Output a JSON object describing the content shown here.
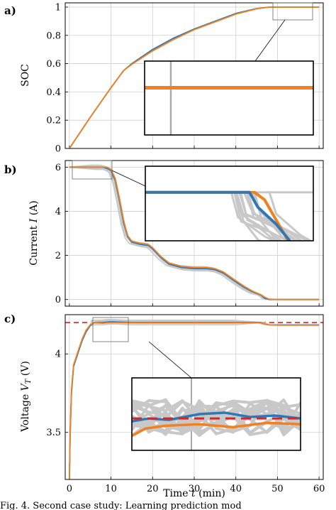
{
  "caption": "Fig. 4. Second case study: Learning prediction mod",
  "colors": {
    "blue": "#2f78b5",
    "orange": "#f08020",
    "gray": "#c8c8c8",
    "red": "#d62728",
    "grid": "#cfcfcf"
  },
  "chart_data": [
    {
      "type": "line",
      "panel_label": "a)",
      "ylabel": "SOC",
      "xlim": [
        -1,
        61
      ],
      "ylim": [
        0,
        1.03
      ],
      "xticks": [
        0,
        10,
        20,
        30,
        40,
        50,
        60
      ],
      "yticks": [
        0,
        0.2,
        0.4,
        0.6,
        0.8,
        1
      ],
      "ytick_labels": [
        "0",
        "0.2",
        "0.4",
        "0.6",
        "0.8",
        "1"
      ],
      "series": [
        {
          "color": "blue",
          "x": [
            0,
            5,
            10,
            13,
            15,
            20,
            25,
            30,
            35,
            40,
            45,
            48,
            50,
            60
          ],
          "y": [
            0,
            0.22,
            0.43,
            0.55,
            0.6,
            0.7,
            0.78,
            0.845,
            0.9,
            0.955,
            0.99,
            1,
            1,
            1
          ]
        },
        {
          "color": "orange",
          "x": [
            0,
            5,
            10,
            13,
            15,
            20,
            25,
            30,
            35,
            40,
            45,
            48,
            50,
            60
          ],
          "y": [
            0,
            0.22,
            0.43,
            0.55,
            0.595,
            0.69,
            0.77,
            0.84,
            0.895,
            0.95,
            0.988,
            1,
            1,
            1
          ]
        }
      ],
      "zoom_box": {
        "x": [
          48.5,
          58.5
        ],
        "y": [
          0.955,
          1.03
        ]
      },
      "inset_series": [
        {
          "color": "orange",
          "y": 0.5
        }
      ]
    },
    {
      "type": "line",
      "panel_label": "b)",
      "ylabel_prefix": "Current ",
      "ylabel_var": "I",
      "ylabel_suffix": " (A)",
      "xlim": [
        -1,
        61
      ],
      "ylim": [
        -0.3,
        6.3
      ],
      "xticks": [
        0,
        10,
        20,
        30,
        40,
        50,
        60
      ],
      "yticks": [
        0,
        2,
        4,
        6
      ],
      "ytick_labels": [
        "0",
        "2",
        "4",
        "6"
      ],
      "series": [
        {
          "color": "blue",
          "x": [
            0,
            6,
            8,
            9,
            10,
            11,
            12,
            13,
            14,
            15,
            17,
            19,
            20,
            22,
            24,
            27,
            30,
            33,
            35,
            37,
            40,
            42,
            44,
            46,
            47,
            48,
            50,
            60
          ],
          "y": [
            6,
            6,
            6,
            5.95,
            5.85,
            5.4,
            4.5,
            3.5,
            2.85,
            2.6,
            2.5,
            2.45,
            2.3,
            1.9,
            1.6,
            1.45,
            1.4,
            1.4,
            1.35,
            1.2,
            0.8,
            0.55,
            0.35,
            0.2,
            0.05,
            0,
            0,
            0
          ]
        },
        {
          "color": "orange",
          "x": [
            0,
            6,
            8,
            9,
            10,
            11,
            12,
            13,
            14,
            15,
            17,
            19,
            20,
            22,
            24,
            27,
            30,
            33,
            35,
            37,
            40,
            42,
            44,
            46,
            47,
            48,
            50,
            60
          ],
          "y": [
            6,
            6,
            6,
            6,
            5.9,
            5.5,
            4.6,
            3.6,
            2.9,
            2.65,
            2.55,
            2.5,
            2.35,
            1.95,
            1.65,
            1.5,
            1.45,
            1.45,
            1.4,
            1.25,
            0.85,
            0.6,
            0.38,
            0.22,
            0.1,
            0.02,
            0,
            0
          ]
        }
      ],
      "zoom_box": {
        "x": [
          0.5,
          12.5
        ],
        "y": [
          5.55,
          6.3
        ]
      },
      "inset_series": [
        {
          "color": "orange",
          "x": [
            0,
            0.65,
            0.71,
            0.85
          ],
          "y": [
            0.35,
            0.35,
            0.45,
            1
          ]
        },
        {
          "color": "blue",
          "x": [
            0,
            0.62,
            0.67,
            0.78,
            0.86
          ],
          "y": [
            0.35,
            0.35,
            0.55,
            0.78,
            1
          ]
        }
      ]
    },
    {
      "type": "line",
      "panel_label": "c)",
      "ylabel_prefix": "Voltage ",
      "ylabel_var": "V",
      "ylabel_sub": "T",
      "ylabel_suffix": " (V)",
      "xlabel_prefix": "Time ",
      "xlabel_var": "t",
      "xlabel_suffix": " (min)",
      "xlim": [
        -1,
        61
      ],
      "ylim": [
        3.2,
        4.25
      ],
      "xticks": [
        0,
        10,
        20,
        30,
        40,
        50,
        60
      ],
      "xtick_labels": [
        "0",
        "10",
        "20",
        "30",
        "40",
        "50",
        "60"
      ],
      "yticks": [
        3.5,
        4
      ],
      "ytick_labels": [
        "3.5",
        "4"
      ],
      "reference_value": 4.2,
      "series": [
        {
          "color": "blue",
          "x": [
            0,
            0.2,
            0.5,
            1,
            2,
            3,
            4,
            5,
            6,
            8,
            10,
            15,
            20,
            30,
            40,
            46,
            47,
            48,
            50,
            60
          ],
          "y": [
            3.2,
            3.5,
            3.75,
            3.92,
            4.0,
            4.08,
            4.14,
            4.18,
            4.2,
            4.2,
            4.205,
            4.2,
            4.2,
            4.2,
            4.2,
            4.2,
            4.19,
            4.185,
            4.185,
            4.185
          ]
        },
        {
          "color": "orange",
          "x": [
            0,
            0.2,
            0.5,
            1,
            2,
            3,
            4,
            5,
            6,
            8,
            10,
            15,
            20,
            30,
            40,
            46,
            47,
            48,
            50,
            60
          ],
          "y": [
            3.2,
            3.52,
            3.77,
            3.93,
            4.01,
            4.09,
            4.15,
            4.185,
            4.2,
            4.195,
            4.2,
            4.198,
            4.198,
            4.198,
            4.198,
            4.198,
            4.19,
            4.185,
            4.183,
            4.183
          ]
        }
      ],
      "zoom_box": {
        "x": [
          6,
          18.5
        ],
        "y": [
          4.11,
          4.27
        ]
      },
      "inset_series": [
        {
          "color": "orange",
          "x": [
            0,
            0.08,
            0.2,
            0.4,
            0.6,
            0.8,
            1
          ],
          "y": [
            0.8,
            0.7,
            0.66,
            0.64,
            0.68,
            0.62,
            0.64
          ]
        },
        {
          "color": "blue",
          "x": [
            0,
            0.1,
            0.22,
            0.4,
            0.55,
            0.7,
            0.85,
            1
          ],
          "y": [
            0.6,
            0.56,
            0.58,
            0.5,
            0.48,
            0.54,
            0.52,
            0.56
          ]
        }
      ]
    }
  ]
}
